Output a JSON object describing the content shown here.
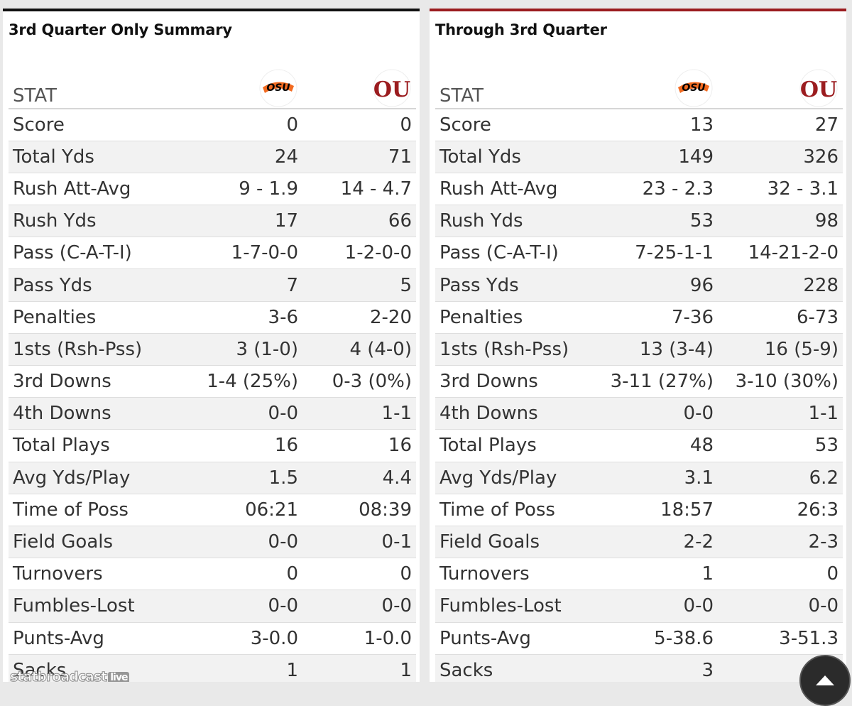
{
  "left_panel": {
    "title": "3rd Quarter Only Summary",
    "header": "STAT",
    "rows": [
      {
        "label": "Score",
        "osu": "0",
        "ou": "0"
      },
      {
        "label": "Total Yds",
        "osu": "24",
        "ou": "71"
      },
      {
        "label": "Rush Att-Avg",
        "osu": "9 - 1.9",
        "ou": "14 - 4.7"
      },
      {
        "label": "Rush Yds",
        "osu": "17",
        "ou": "66"
      },
      {
        "label": "Pass (C-A-T-I)",
        "osu": "1-7-0-0",
        "ou": "1-2-0-0"
      },
      {
        "label": "Pass Yds",
        "osu": "7",
        "ou": "5"
      },
      {
        "label": "Penalties",
        "osu": "3-6",
        "ou": "2-20"
      },
      {
        "label": "1sts (Rsh-Pss)",
        "osu": "3 (1-0)",
        "ou": "4 (4-0)"
      },
      {
        "label": "3rd Downs",
        "osu": "1-4 (25%)",
        "ou": "0-3 (0%)"
      },
      {
        "label": "4th Downs",
        "osu": "0-0",
        "ou": "1-1"
      },
      {
        "label": "Total Plays",
        "osu": "16",
        "ou": "16"
      },
      {
        "label": "Avg Yds/Play",
        "osu": "1.5",
        "ou": "4.4"
      },
      {
        "label": "Time of Poss",
        "osu": "06:21",
        "ou": "08:39"
      },
      {
        "label": "Field Goals",
        "osu": "0-0",
        "ou": "0-1"
      },
      {
        "label": "Turnovers",
        "osu": "0",
        "ou": "0"
      },
      {
        "label": "Fumbles-Lost",
        "osu": "0-0",
        "ou": "0-0"
      },
      {
        "label": "Punts-Avg",
        "osu": "3-0.0",
        "ou": "1-0.0"
      },
      {
        "label": "Sacks",
        "osu": "1",
        "ou": "1"
      }
    ]
  },
  "right_panel": {
    "title": "Through 3rd Quarter",
    "header": "STAT",
    "rows": [
      {
        "label": "Score",
        "osu": "13",
        "ou": "27"
      },
      {
        "label": "Total Yds",
        "osu": "149",
        "ou": "326"
      },
      {
        "label": "Rush Att-Avg",
        "osu": "23 - 2.3",
        "ou": "32 - 3.1"
      },
      {
        "label": "Rush Yds",
        "osu": "53",
        "ou": "98"
      },
      {
        "label": "Pass (C-A-T-I)",
        "osu": "7-25-1-1",
        "ou": "14-21-2-0"
      },
      {
        "label": "Pass Yds",
        "osu": "96",
        "ou": "228"
      },
      {
        "label": "Penalties",
        "osu": "7-36",
        "ou": "6-73"
      },
      {
        "label": "1sts (Rsh-Pss)",
        "osu": "13 (3-4)",
        "ou": "16 (5-9)"
      },
      {
        "label": "3rd Downs",
        "osu": "3-11 (27%)",
        "ou": "3-10 (30%)"
      },
      {
        "label": "4th Downs",
        "osu": "0-0",
        "ou": "1-1"
      },
      {
        "label": "Total Plays",
        "osu": "48",
        "ou": "53"
      },
      {
        "label": "Avg Yds/Play",
        "osu": "3.1",
        "ou": "6.2"
      },
      {
        "label": "Time of Poss",
        "osu": "18:57",
        "ou": "26:3"
      },
      {
        "label": "Field Goals",
        "osu": "2-2",
        "ou": "2-3"
      },
      {
        "label": "Turnovers",
        "osu": "1",
        "ou": "0"
      },
      {
        "label": "Fumbles-Lost",
        "osu": "0-0",
        "ou": "0-0"
      },
      {
        "label": "Punts-Avg",
        "osu": "5-38.6",
        "ou": "3-51.3"
      },
      {
        "label": "Sacks",
        "osu": "3",
        "ou": ""
      }
    ]
  },
  "logos": {
    "osu_text": "OSU",
    "ou_text": "OU",
    "osu_color": "#f26b21",
    "ou_color": "#9b1c1f"
  },
  "watermark": {
    "text": "statbroadcast",
    "live": "live"
  },
  "colors": {
    "left_accent": "#111111",
    "right_accent": "#9b1c1f"
  },
  "scroll_button_icon": "arrow-up-icon"
}
